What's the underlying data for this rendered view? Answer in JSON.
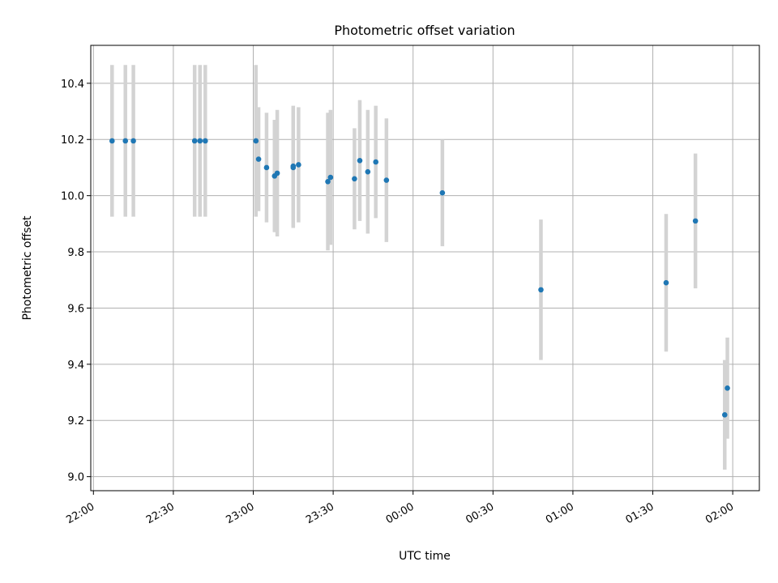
{
  "chart_data": {
    "type": "scatter",
    "title": "Photometric offset variation",
    "xlabel": "UTC time",
    "ylabel": "Photometric offset",
    "x_ticks": [
      "22:00",
      "22:30",
      "23:00",
      "23:30",
      "00:00",
      "00:30",
      "01:00",
      "01:30",
      "02:00"
    ],
    "y_ticks": [
      "9.0",
      "9.2",
      "9.4",
      "9.6",
      "9.8",
      "10.0",
      "10.2",
      "10.4"
    ],
    "xlim": [
      "21:59",
      "02:10"
    ],
    "ylim": [
      8.95,
      10.535
    ],
    "grid": true,
    "point_color": "#1f77b4",
    "errorbar_color": "#d3d3d3",
    "points": [
      {
        "x": "22:07",
        "y": 10.195,
        "err": 0.27
      },
      {
        "x": "22:12",
        "y": 10.195,
        "err": 0.27
      },
      {
        "x": "22:15",
        "y": 10.195,
        "err": 0.27
      },
      {
        "x": "22:38",
        "y": 10.195,
        "err": 0.27
      },
      {
        "x": "22:40",
        "y": 10.195,
        "err": 0.27
      },
      {
        "x": "22:42",
        "y": 10.195,
        "err": 0.27
      },
      {
        "x": "23:01",
        "y": 10.195,
        "err": 0.27
      },
      {
        "x": "23:02",
        "y": 10.13,
        "err": 0.185
      },
      {
        "x": "23:05",
        "y": 10.1,
        "err": 0.195
      },
      {
        "x": "23:08",
        "y": 10.07,
        "err": 0.2
      },
      {
        "x": "23:09",
        "y": 10.08,
        "err": 0.225
      },
      {
        "x": "23:15",
        "y": 10.105,
        "err": 0.215
      },
      {
        "x": "23:15",
        "y": 10.1,
        "err": 0.215
      },
      {
        "x": "23:17",
        "y": 10.11,
        "err": 0.205
      },
      {
        "x": "23:28",
        "y": 10.05,
        "err": 0.245
      },
      {
        "x": "23:29",
        "y": 10.065,
        "err": 0.24
      },
      {
        "x": "23:38",
        "y": 10.06,
        "err": 0.18
      },
      {
        "x": "23:40",
        "y": 10.125,
        "err": 0.215
      },
      {
        "x": "23:43",
        "y": 10.085,
        "err": 0.22
      },
      {
        "x": "23:46",
        "y": 10.12,
        "err": 0.2
      },
      {
        "x": "23:50",
        "y": 10.055,
        "err": 0.22
      },
      {
        "x": "00:11",
        "y": 10.01,
        "err": 0.19
      },
      {
        "x": "00:48",
        "y": 9.665,
        "err": 0.25
      },
      {
        "x": "01:35",
        "y": 9.69,
        "err": 0.245
      },
      {
        "x": "01:46",
        "y": 9.91,
        "err": 0.24
      },
      {
        "x": "01:57",
        "y": 9.22,
        "err": 0.195
      },
      {
        "x": "01:58",
        "y": 9.315,
        "err": 0.18
      }
    ]
  }
}
